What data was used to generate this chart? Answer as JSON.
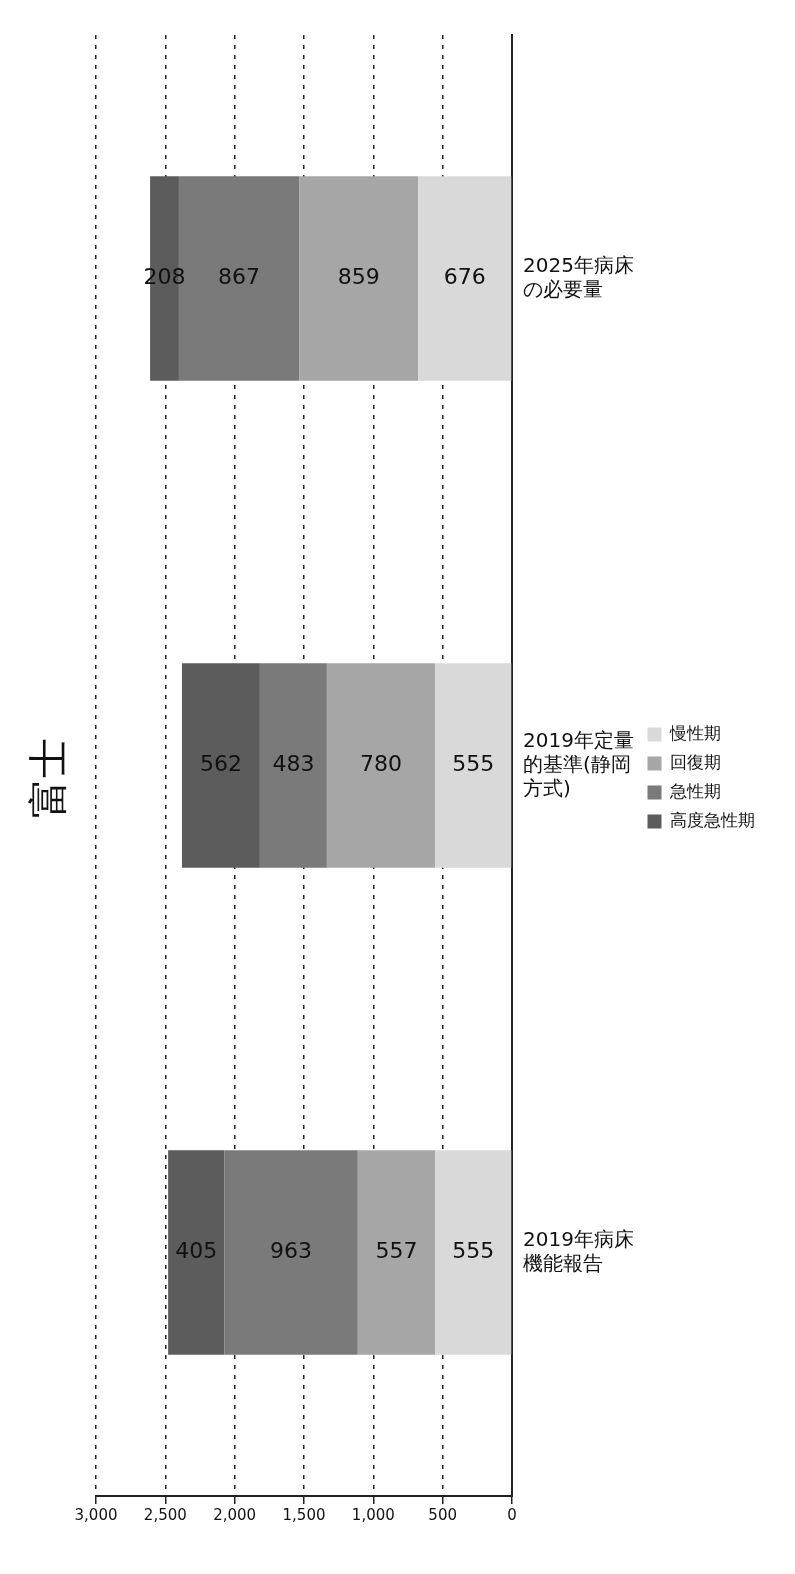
{
  "chart_data": {
    "type": "bar",
    "title": "富士",
    "stacked": true,
    "orientation": "horizontal",
    "categories": [
      "2025年病床の必要量",
      "2019年定量的基準(静岡方式)",
      "2019年病床機能報告"
    ],
    "series": [
      {
        "name": "慢性期",
        "color": "#d9d9d9",
        "values": [
          676,
          555,
          555
        ]
      },
      {
        "name": "回復期",
        "color": "#a6a6a6",
        "values": [
          859,
          780,
          557
        ]
      },
      {
        "name": "急性期",
        "color": "#7a7a7a",
        "values": [
          867,
          483,
          963
        ]
      },
      {
        "name": "高度急性期",
        "color": "#5c5c5c",
        "values": [
          208,
          562,
          405
        ]
      }
    ],
    "xlim": [
      3000,
      0
    ],
    "xticks": [
      {
        "value": 3000,
        "label": "3,000"
      },
      {
        "value": 2500,
        "label": "2,500"
      },
      {
        "value": 2000,
        "label": "2,000"
      },
      {
        "value": 1500,
        "label": "1,500"
      },
      {
        "value": 1000,
        "label": "1,000"
      },
      500,
      0
    ],
    "grid": "x",
    "legend": "right",
    "data_labels": true
  }
}
